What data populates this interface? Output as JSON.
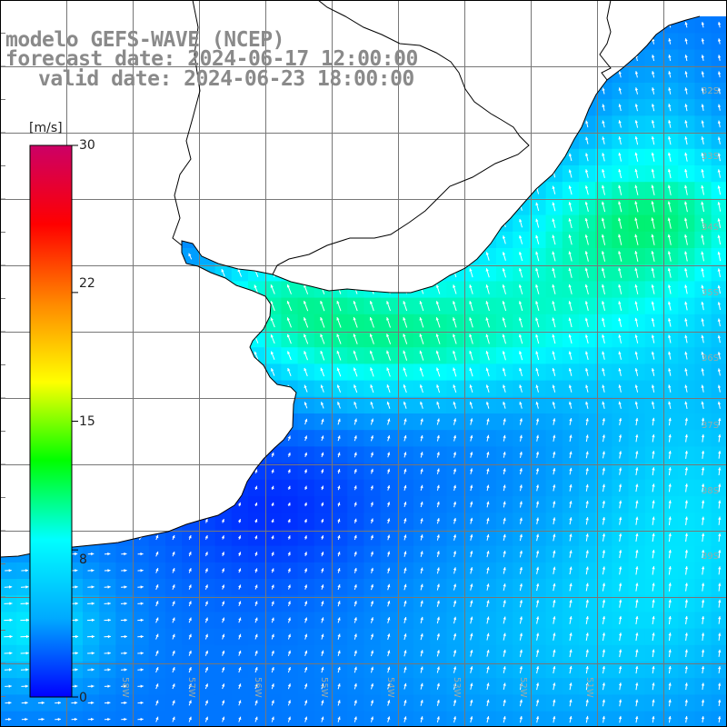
{
  "title": {
    "line1": "modelo GEFS-WAVE (NCEP)",
    "line2": "forecast date: 2024-06-17 12:00:00",
    "line3": "valid date: 2024-06-23 18:00:00"
  },
  "colorbar": {
    "unit": "[m/s]",
    "ticks": [
      "30",
      "22",
      "15",
      "8",
      "0"
    ],
    "tick_values": [
      30,
      22,
      15,
      8,
      0
    ],
    "min": 0,
    "max": 30,
    "colors": [
      "#0000ff",
      "#00aaff",
      "#00ffff",
      "#00ff00",
      "#ffff00",
      "#ff8800",
      "#ff0000",
      "#cc0066"
    ]
  },
  "map": {
    "land_color": "#ffffff",
    "coast_color": "#000000",
    "grid_color": "#777777",
    "arrow_color": "#ffffff",
    "lon_labels": [
      "59W",
      "58W",
      "57W",
      "56W",
      "55W",
      "54W",
      "53W",
      "52W",
      "51W"
    ],
    "lat_labels": [
      "32S",
      "33S",
      "34S",
      "35S",
      "36S",
      "37S",
      "38S",
      "39S"
    ]
  }
}
